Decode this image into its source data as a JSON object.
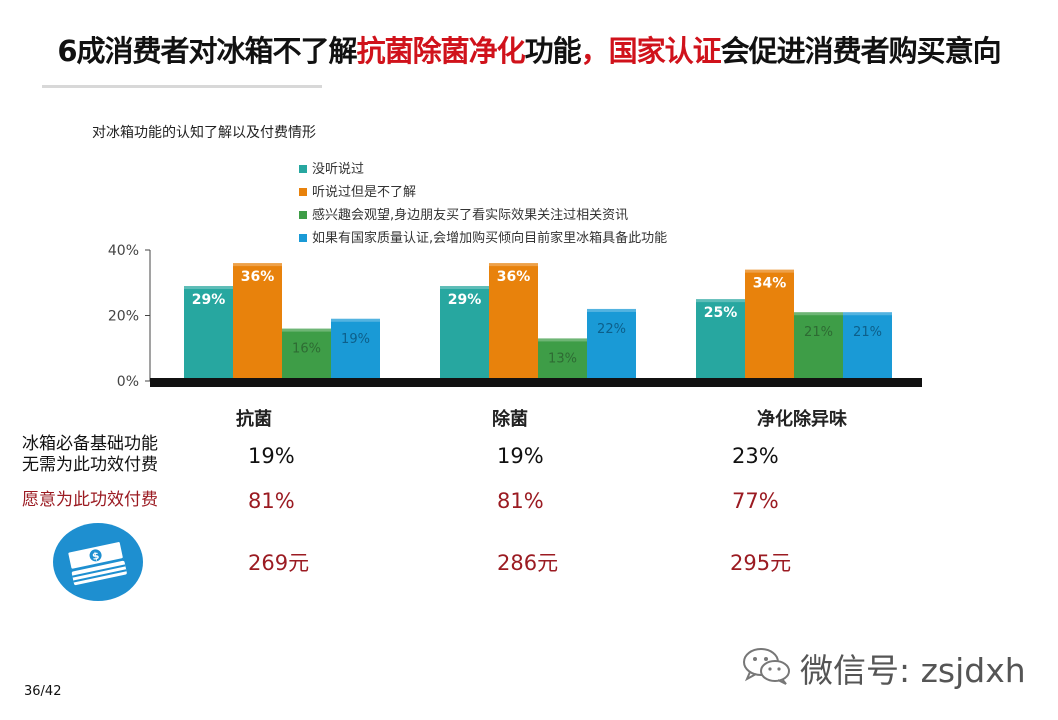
{
  "header": {
    "title_part1": "6成消费者对冰箱不了解",
    "title_part2": "抗菌除菌净化",
    "title_part3": "功能",
    "title_part4": "，国家认证",
    "title_part5": "会促进消费者购买意向"
  },
  "chart_data": {
    "type": "bar",
    "title": "对冰箱功能的认知了解以及付费情形",
    "categories": [
      "抗菌",
      "除菌",
      "净化除异味"
    ],
    "yticks": [
      "0%",
      "20%",
      "40%"
    ],
    "ylim": [
      0,
      40
    ],
    "legend_position": "top",
    "series": [
      {
        "name": "没听说过",
        "color": "#27a7a0",
        "values": [
          29,
          29,
          25
        ],
        "labels": [
          "29%",
          "29%",
          "25%"
        ]
      },
      {
        "name": "听说过但是不了解",
        "color": "#e8820c",
        "values": [
          36,
          36,
          34
        ],
        "labels": [
          "36%",
          "36%",
          "34%"
        ]
      },
      {
        "name": "感兴趣会观望,身边朋友买了看实际效果关注过相关资讯",
        "color": "#3e9d47",
        "values": [
          16,
          13,
          21
        ],
        "labels": [
          "16%",
          "13%",
          "21%"
        ]
      },
      {
        "name": "如果有国家质量认证,会增加购买倾向目前家里冰箱具备此功能",
        "color": "#1a9ad6",
        "values": [
          19,
          22,
          21
        ],
        "labels": [
          "19%",
          "22%",
          "21%"
        ]
      }
    ]
  },
  "table": {
    "row1_label_line1": "冰箱必备基础功能",
    "row1_label_line2": "无需为此功效付费",
    "row2_label": "愿意为此功效付费",
    "row1_values": [
      "19%",
      "19%",
      "23%"
    ],
    "row2_values": [
      "81%",
      "81%",
      "77%"
    ],
    "row3_values": [
      "269元",
      "286元",
      "295元"
    ]
  },
  "icons": {
    "money": "money-stack-icon",
    "wechat": "wechat-icon"
  },
  "footer": {
    "page": "36/42",
    "wechat_id": "微信号: zsjdxh"
  },
  "colors": {
    "title_red": "#d0121b",
    "value_red": "#9b1b22",
    "icon_circle": "#1e8fd0"
  }
}
